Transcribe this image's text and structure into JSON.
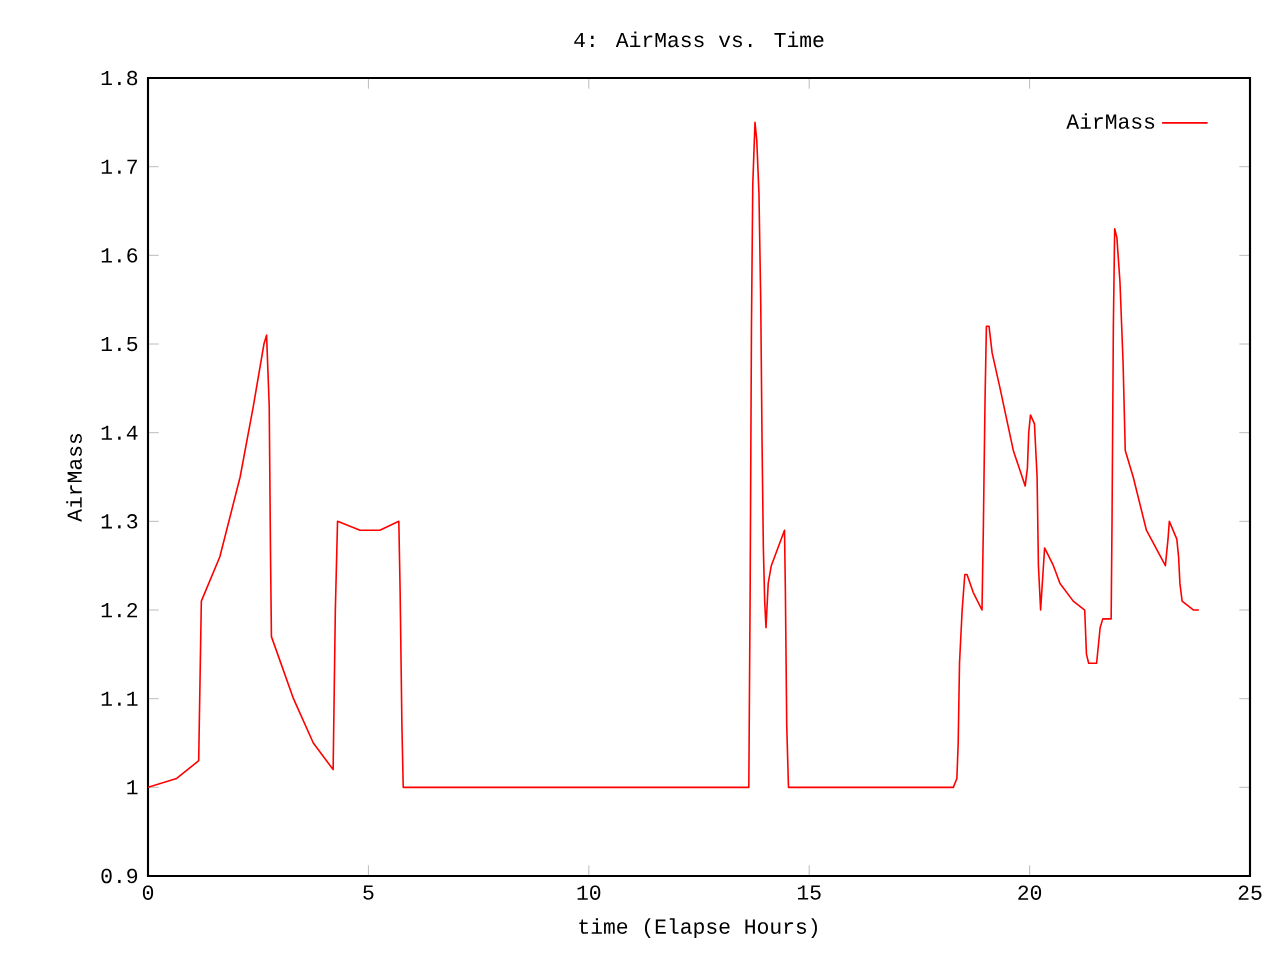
{
  "chart_data": {
    "type": "line",
    "title": "4: AirMass vs. Time",
    "xlabel": "time (Elapse Hours)",
    "ylabel": "AirMass",
    "xlim": [
      0,
      25
    ],
    "ylim": [
      0.9,
      1.8
    ],
    "xticks": [
      0,
      5,
      10,
      15,
      20,
      25
    ],
    "yticks": [
      0.9,
      1,
      1.1,
      1.2,
      1.3,
      1.4,
      1.5,
      1.6,
      1.7,
      1.8
    ],
    "legend": "top right",
    "grid": false,
    "marker": "none",
    "line_style": "solid",
    "series": [
      {
        "name": "AirMass",
        "color": "#ff0000",
        "x": [
          0,
          0.65,
          1.15,
          1.21,
          1.63,
          2.09,
          2.39,
          2.63,
          2.69,
          2.75,
          2.78,
          2.8,
          3.3,
          3.75,
          4.2,
          4.25,
          4.3,
          4.81,
          5.26,
          5.69,
          5.72,
          5.76,
          5.79,
          13.63,
          13.66,
          13.69,
          13.72,
          13.77,
          13.81,
          13.86,
          13.9,
          13.93,
          13.96,
          13.99,
          14.02,
          14.07,
          14.14,
          14.44,
          14.46,
          14.49,
          14.53,
          18.27,
          18.35,
          18.38,
          18.41,
          18.47,
          18.53,
          18.58,
          18.72,
          18.92,
          18.95,
          18.99,
          19.02,
          19.08,
          19.15,
          19.33,
          19.63,
          19.9,
          19.95,
          19.98,
          20.02,
          20.11,
          20.17,
          20.2,
          20.25,
          20.34,
          20.54,
          20.69,
          20.99,
          21.25,
          21.29,
          21.34,
          21.52,
          21.6,
          21.66,
          21.85,
          21.87,
          21.9,
          21.93,
          21.98,
          22.05,
          22.12,
          22.17,
          22.35,
          22.65,
          23.08,
          23.14,
          23.17,
          23.34,
          23.38,
          23.41,
          23.46,
          23.72,
          23.84
        ],
        "values": [
          1.0,
          1.01,
          1.03,
          1.21,
          1.26,
          1.35,
          1.43,
          1.5,
          1.51,
          1.43,
          1.26,
          1.17,
          1.1,
          1.05,
          1.02,
          1.2,
          1.3,
          1.29,
          1.29,
          1.3,
          1.22,
          1.07,
          1.0,
          1.0,
          1.22,
          1.52,
          1.68,
          1.75,
          1.73,
          1.67,
          1.55,
          1.39,
          1.27,
          1.21,
          1.18,
          1.23,
          1.25,
          1.29,
          1.22,
          1.07,
          1.0,
          1.0,
          1.01,
          1.05,
          1.14,
          1.2,
          1.24,
          1.24,
          1.22,
          1.2,
          1.29,
          1.44,
          1.52,
          1.52,
          1.49,
          1.45,
          1.38,
          1.34,
          1.36,
          1.4,
          1.42,
          1.41,
          1.35,
          1.25,
          1.2,
          1.27,
          1.25,
          1.23,
          1.21,
          1.2,
          1.15,
          1.14,
          1.14,
          1.18,
          1.19,
          1.19,
          1.3,
          1.52,
          1.63,
          1.62,
          1.57,
          1.48,
          1.38,
          1.35,
          1.29,
          1.25,
          1.28,
          1.3,
          1.28,
          1.26,
          1.23,
          1.21,
          1.2,
          1.2
        ]
      }
    ]
  }
}
